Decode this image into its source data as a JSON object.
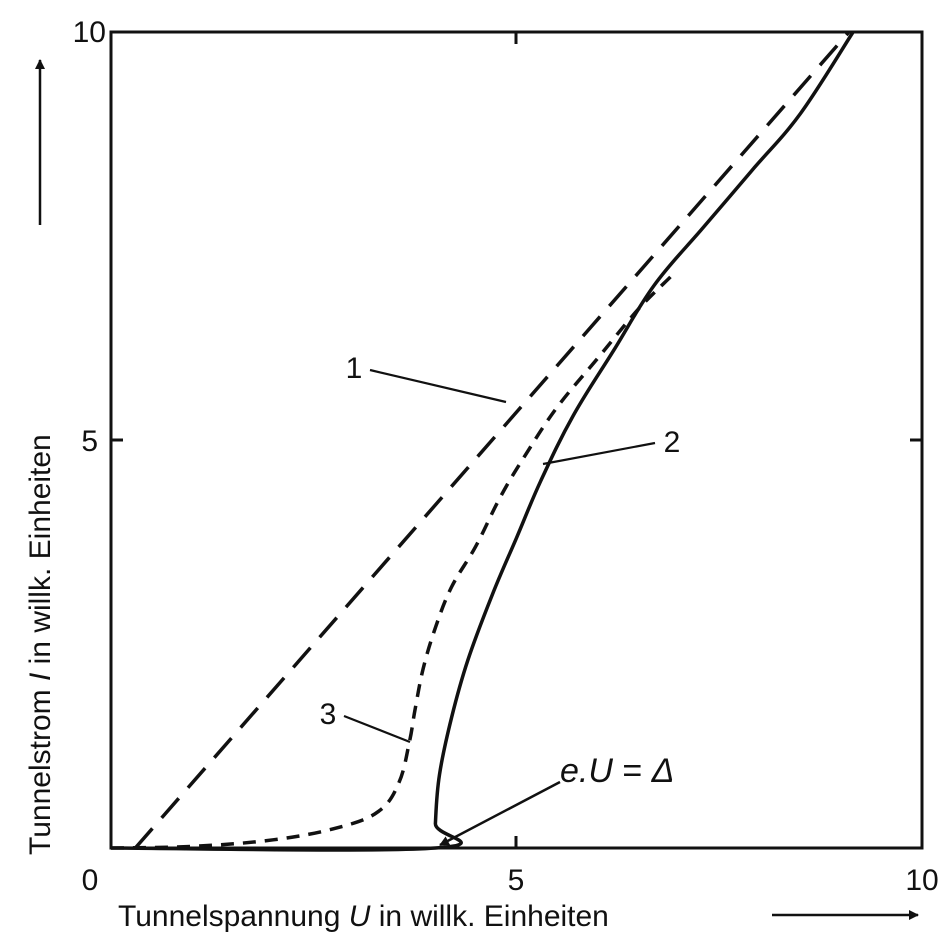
{
  "chart_data": {
    "type": "line",
    "title": "",
    "xlabel": "Tunnelspannung U in willk. Einheiten",
    "xlabel_parts": [
      "Tunnelspannung ",
      "U",
      " in willk. Einheiten"
    ],
    "ylabel": "Tunnelstrom I in willk. Einheiten",
    "ylabel_parts": [
      "Tunnelstrom ",
      "I",
      " in willk. Einheiten"
    ],
    "xlim": [
      0,
      10
    ],
    "ylim": [
      0,
      10
    ],
    "xticks": [
      "0",
      "5",
      "10"
    ],
    "yticks": [
      "5",
      "10"
    ],
    "grid": false,
    "series": [
      {
        "label": "1",
        "style": "long-dash",
        "x": [
          0.3,
          9.1
        ],
        "y": [
          0,
          10
        ]
      },
      {
        "label": "2",
        "style": "solid",
        "x": [
          0,
          4.0,
          4.0,
          4.05,
          4.2,
          4.4,
          4.7,
          5.0,
          5.3,
          5.7,
          6.2,
          6.7,
          7.3,
          7.9,
          8.5,
          9.15
        ],
        "y": [
          0,
          0,
          0.3,
          0.9,
          1.6,
          2.3,
          3.1,
          3.8,
          4.5,
          5.3,
          6.1,
          6.9,
          7.6,
          8.3,
          9.0,
          10.0
        ]
      },
      {
        "label": "3",
        "style": "short-dash",
        "x": [
          0,
          1.0,
          2.0,
          2.8,
          3.3,
          3.55,
          3.68,
          3.75,
          3.85,
          4.0,
          4.2,
          4.5,
          4.8,
          5.1,
          5.5,
          6.0,
          6.5,
          6.9
        ],
        "y": [
          0,
          0.02,
          0.1,
          0.25,
          0.45,
          0.8,
          1.3,
          1.7,
          2.2,
          2.7,
          3.2,
          3.7,
          4.3,
          4.8,
          5.4,
          6.0,
          6.6,
          7.0
        ]
      }
    ],
    "annotations": [
      {
        "text": "1",
        "x": 4.8,
        "y": 5.5
      },
      {
        "text": "2",
        "x": 5.3,
        "y": 4.7
      },
      {
        "text": "3",
        "x": 3.75,
        "y": 1.3
      },
      {
        "text_parts": [
          "e.U",
          " = ",
          "Δ"
        ],
        "x": 4.0,
        "y": 0
      }
    ]
  }
}
